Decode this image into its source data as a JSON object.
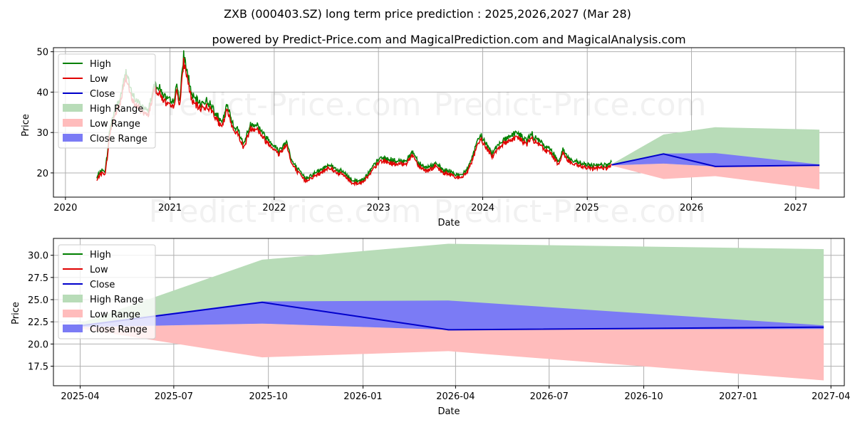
{
  "title_line1": "ZXB (000403.SZ) long term price prediction : 2025,2026,2027 (Mar 28)",
  "title_line2": "powered by Predict-Price.com and MagicalPrediction.com and MagicalAnalysis.com",
  "watermark": "Predict-Price.com",
  "colors": {
    "high": "#008000",
    "low": "#e00000",
    "close": "#0000cc",
    "high_range": "#b8dcb8",
    "low_range": "#ffbcbc",
    "close_range": "#7b7bf5",
    "grid": "#b0b0b0"
  },
  "chart_data": [
    {
      "type": "line",
      "xlabel": "Date",
      "ylabel": "Price",
      "xlim": [
        "2019-11-20",
        "2027-06-20"
      ],
      "ylim": [
        14,
        51
      ],
      "grid": true,
      "legend_placement": "top-left",
      "x_ticks": [
        "2020",
        "2021",
        "2022",
        "2023",
        "2024",
        "2025",
        "2026",
        "2027"
      ],
      "y_ticks": [
        20,
        30,
        40,
        50
      ],
      "y_tick_labels": [
        "20",
        "30",
        "40",
        "50"
      ],
      "legend": [
        "High",
        "Low",
        "Close",
        "High Range",
        "Low Range",
        "Close Range"
      ],
      "history_anchors": [
        [
          "2020-04-20",
          18
        ],
        [
          "2020-05-01",
          19.7
        ],
        [
          "2020-05-20",
          20
        ],
        [
          "2020-06-05",
          30
        ],
        [
          "2020-06-20",
          34
        ],
        [
          "2020-07-10",
          37
        ],
        [
          "2020-08-01",
          44
        ],
        [
          "2020-08-20",
          38
        ],
        [
          "2020-09-15",
          36
        ],
        [
          "2020-10-15",
          34
        ],
        [
          "2020-11-10",
          41
        ],
        [
          "2020-12-01",
          39
        ],
        [
          "2020-12-20",
          37
        ],
        [
          "2021-01-10",
          36
        ],
        [
          "2021-01-25",
          40
        ],
        [
          "2021-02-05",
          37
        ],
        [
          "2021-02-18",
          47.5
        ],
        [
          "2021-03-01",
          44
        ],
        [
          "2021-03-20",
          37.5
        ],
        [
          "2021-04-15",
          36
        ],
        [
          "2021-05-10",
          36.5
        ],
        [
          "2021-06-01",
          35
        ],
        [
          "2021-07-01",
          31
        ],
        [
          "2021-07-20",
          35.5
        ],
        [
          "2021-08-10",
          31
        ],
        [
          "2021-09-01",
          29
        ],
        [
          "2021-09-15",
          26
        ],
        [
          "2021-10-10",
          31
        ],
        [
          "2021-11-01",
          31
        ],
        [
          "2021-12-01",
          28
        ],
        [
          "2022-01-01",
          26
        ],
        [
          "2022-01-15",
          24.5
        ],
        [
          "2022-02-15",
          27
        ],
        [
          "2022-03-01",
          22.5
        ],
        [
          "2022-03-20",
          20.5
        ],
        [
          "2022-04-20",
          18
        ],
        [
          "2022-05-15",
          19
        ],
        [
          "2022-06-15",
          20
        ],
        [
          "2022-07-10",
          21.5
        ],
        [
          "2022-08-10",
          20
        ],
        [
          "2022-09-01",
          19.5
        ],
        [
          "2022-10-01",
          17.5
        ],
        [
          "2022-11-01",
          17.5
        ],
        [
          "2022-12-01",
          19.5
        ],
        [
          "2022-12-20",
          21.5
        ],
        [
          "2023-01-10",
          23
        ],
        [
          "2023-02-10",
          22.5
        ],
        [
          "2023-03-10",
          22
        ],
        [
          "2023-04-10",
          22.5
        ],
        [
          "2023-05-01",
          24.5
        ],
        [
          "2023-05-20",
          22
        ],
        [
          "2023-06-15",
          20.5
        ],
        [
          "2023-07-20",
          21.5
        ],
        [
          "2023-08-15",
          20
        ],
        [
          "2023-09-15",
          19.5
        ],
        [
          "2023-10-15",
          18.5
        ],
        [
          "2023-11-05",
          20
        ],
        [
          "2023-11-25",
          23
        ],
        [
          "2023-12-10",
          26
        ],
        [
          "2023-12-25",
          28.5
        ],
        [
          "2024-01-10",
          26.5
        ],
        [
          "2024-02-05",
          24
        ],
        [
          "2024-02-20",
          26
        ],
        [
          "2024-03-10",
          27
        ],
        [
          "2024-04-01",
          28
        ],
        [
          "2024-05-01",
          29
        ],
        [
          "2024-06-01",
          27
        ],
        [
          "2024-06-20",
          28.5
        ],
        [
          "2024-07-15",
          27
        ],
        [
          "2024-08-10",
          25.5
        ],
        [
          "2024-09-01",
          24.5
        ],
        [
          "2024-09-20",
          22
        ],
        [
          "2024-10-08",
          25
        ],
        [
          "2024-10-25",
          23
        ],
        [
          "2024-11-15",
          22
        ],
        [
          "2024-12-15",
          21.5
        ],
        [
          "2025-01-15",
          21
        ],
        [
          "2025-02-15",
          21.5
        ],
        [
          "2025-03-10",
          21
        ],
        [
          "2025-03-28",
          22
        ]
      ],
      "forecast": {
        "dates": [
          "2025-03-28",
          "2025-09-25",
          "2026-03-25",
          "2027-03-25"
        ],
        "close": [
          22,
          24.7,
          21.6,
          21.9
        ],
        "high_range": [
          22.2,
          29.5,
          31.3,
          30.7
        ],
        "low_range": [
          21.8,
          18.5,
          19.2,
          15.9
        ],
        "close_range_upper": [
          22.1,
          24.8,
          24.9,
          22.1
        ],
        "close_range_lower": [
          21.9,
          22.3,
          21.6,
          21.7
        ]
      }
    },
    {
      "type": "line",
      "xlabel": "Date",
      "ylabel": "Price",
      "xlim": [
        "2025-03-06",
        "2027-04-14"
      ],
      "ylim": [
        15.3,
        31.9
      ],
      "grid": true,
      "legend_placement": "top-left",
      "x_ticks": [
        "2025-04-01",
        "2025-07-01",
        "2025-10-01",
        "2026-01-01",
        "2026-04-01",
        "2026-07-01",
        "2026-10-01",
        "2027-01-01",
        "2027-04-01"
      ],
      "x_tick_labels": [
        "2025-04",
        "2025-07",
        "2025-10",
        "2026-01",
        "2026-04",
        "2026-07",
        "2026-10",
        "2027-01",
        "2027-04"
      ],
      "y_ticks": [
        17.5,
        20,
        22.5,
        25,
        27.5,
        30
      ],
      "y_tick_labels": [
        "17.5",
        "20.0",
        "22.5",
        "25.0",
        "27.5",
        "30.0"
      ],
      "legend": [
        "High",
        "Low",
        "Close",
        "High Range",
        "Low Range",
        "Close Range"
      ],
      "forecast": {
        "dates": [
          "2025-03-28",
          "2025-09-25",
          "2026-03-25",
          "2027-03-25"
        ],
        "close": [
          22,
          24.7,
          21.6,
          21.9
        ],
        "high_range": [
          22.2,
          29.5,
          31.3,
          30.7
        ],
        "low_range": [
          21.8,
          18.5,
          19.2,
          15.9
        ],
        "close_range_upper": [
          22.1,
          24.8,
          24.9,
          22.1
        ],
        "close_range_lower": [
          21.9,
          22.3,
          21.6,
          21.7
        ]
      }
    }
  ]
}
